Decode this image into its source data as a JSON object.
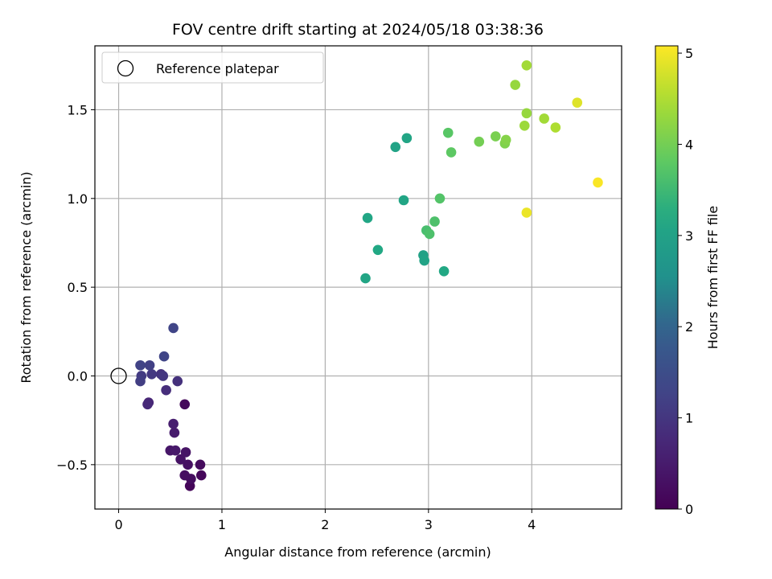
{
  "chart_data": {
    "type": "scatter",
    "title": "FOV centre drift starting at 2024/05/18 03:38:36",
    "xlabel": "Angular distance from reference (arcmin)",
    "ylabel": "Rotation from reference (arcmin)",
    "colorbar_label": "Hours from first FF file",
    "xlim": [
      -0.23,
      4.87
    ],
    "ylim": [
      -0.75,
      1.86
    ],
    "clim": [
      0,
      5.08
    ],
    "colormap": "viridis",
    "xticks": [
      0,
      1,
      2,
      3,
      4
    ],
    "xtick_labels": [
      "0",
      "1",
      "2",
      "3",
      "4"
    ],
    "yticks": [
      -0.5,
      0.0,
      0.5,
      1.0,
      1.5
    ],
    "ytick_labels": [
      "−0.5",
      "0.0",
      "0.5",
      "1.0",
      "1.5"
    ],
    "cticks": [
      0,
      1,
      2,
      3,
      4,
      5
    ],
    "ctick_labels": [
      "0",
      "1",
      "2",
      "3",
      "4",
      "5"
    ],
    "grid": true,
    "legend": {
      "placement": "top-left",
      "entries": [
        "Reference platepar"
      ]
    },
    "reference": {
      "x": 0,
      "y": 0
    },
    "series": [
      {
        "points": [
          {
            "x": 0.64,
            "y": -0.16,
            "c": 0.15
          },
          {
            "x": 0.69,
            "y": -0.62,
            "c": 0.1
          },
          {
            "x": 0.8,
            "y": -0.56,
            "c": 0.12
          },
          {
            "x": 0.79,
            "y": -0.5,
            "c": 0.18
          },
          {
            "x": 0.7,
            "y": -0.58,
            "c": 0.22
          },
          {
            "x": 0.64,
            "y": -0.56,
            "c": 0.25
          },
          {
            "x": 0.67,
            "y": -0.5,
            "c": 0.28
          },
          {
            "x": 0.6,
            "y": -0.47,
            "c": 0.32
          },
          {
            "x": 0.65,
            "y": -0.43,
            "c": 0.35
          },
          {
            "x": 0.5,
            "y": -0.42,
            "c": 0.4
          },
          {
            "x": 0.55,
            "y": -0.42,
            "c": 0.45
          },
          {
            "x": 0.54,
            "y": -0.32,
            "c": 0.5
          },
          {
            "x": 0.53,
            "y": -0.27,
            "c": 0.55
          },
          {
            "x": 0.29,
            "y": -0.15,
            "c": 0.7
          },
          {
            "x": 0.28,
            "y": -0.16,
            "c": 0.75
          },
          {
            "x": 0.46,
            "y": -0.08,
            "c": 0.85
          },
          {
            "x": 0.57,
            "y": -0.03,
            "c": 0.9
          },
          {
            "x": 0.41,
            "y": 0.01,
            "c": 0.92
          },
          {
            "x": 0.43,
            "y": 0.0,
            "c": 1.0
          },
          {
            "x": 0.32,
            "y": 0.01,
            "c": 1.05
          },
          {
            "x": 0.22,
            "y": 0.0,
            "c": 1.1
          },
          {
            "x": 0.21,
            "y": -0.03,
            "c": 1.15
          },
          {
            "x": 0.3,
            "y": 0.06,
            "c": 1.2
          },
          {
            "x": 0.21,
            "y": 0.06,
            "c": 1.25
          },
          {
            "x": 0.44,
            "y": 0.11,
            "c": 1.3
          },
          {
            "x": 0.53,
            "y": 0.27,
            "c": 1.3
          },
          {
            "x": 2.39,
            "y": 0.55,
            "c": 3.1
          },
          {
            "x": 2.41,
            "y": 0.89,
            "c": 3.15
          },
          {
            "x": 2.51,
            "y": 0.71,
            "c": 3.2
          },
          {
            "x": 2.68,
            "y": 1.29,
            "c": 3.05
          },
          {
            "x": 2.79,
            "y": 1.34,
            "c": 3.1
          },
          {
            "x": 2.76,
            "y": 0.99,
            "c": 3.1
          },
          {
            "x": 2.95,
            "y": 0.68,
            "c": 3.0
          },
          {
            "x": 2.96,
            "y": 0.65,
            "c": 3.05
          },
          {
            "x": 3.15,
            "y": 0.59,
            "c": 3.2
          },
          {
            "x": 2.98,
            "y": 0.82,
            "c": 3.6
          },
          {
            "x": 3.01,
            "y": 0.8,
            "c": 3.65
          },
          {
            "x": 3.06,
            "y": 0.87,
            "c": 3.65
          },
          {
            "x": 3.11,
            "y": 1.0,
            "c": 3.7
          },
          {
            "x": 3.19,
            "y": 1.37,
            "c": 3.75
          },
          {
            "x": 3.22,
            "y": 1.26,
            "c": 3.8
          },
          {
            "x": 3.49,
            "y": 1.32,
            "c": 4.0
          },
          {
            "x": 3.65,
            "y": 1.35,
            "c": 4.05
          },
          {
            "x": 3.74,
            "y": 1.31,
            "c": 4.1
          },
          {
            "x": 3.75,
            "y": 1.33,
            "c": 4.15
          },
          {
            "x": 3.84,
            "y": 1.64,
            "c": 4.3
          },
          {
            "x": 3.93,
            "y": 1.41,
            "c": 4.35
          },
          {
            "x": 3.95,
            "y": 1.48,
            "c": 4.3
          },
          {
            "x": 3.95,
            "y": 1.75,
            "c": 4.4
          },
          {
            "x": 4.12,
            "y": 1.45,
            "c": 4.4
          },
          {
            "x": 4.23,
            "y": 1.4,
            "c": 4.5
          },
          {
            "x": 3.95,
            "y": 0.92,
            "c": 4.95
          },
          {
            "x": 4.44,
            "y": 1.54,
            "c": 4.85
          },
          {
            "x": 4.64,
            "y": 1.09,
            "c": 5.05
          }
        ]
      }
    ]
  }
}
